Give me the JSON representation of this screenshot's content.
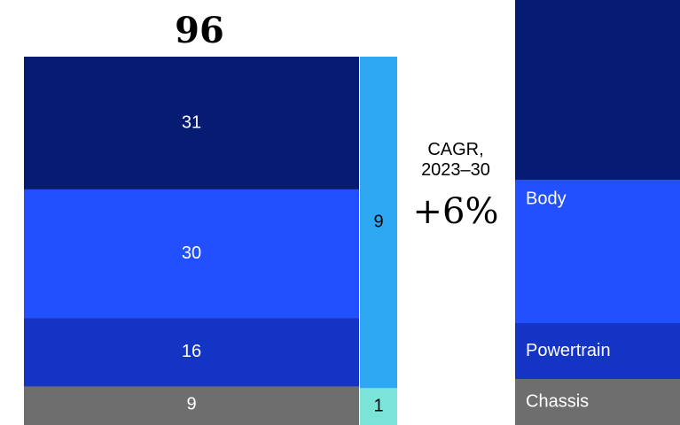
{
  "chart_data": {
    "type": "bar",
    "title": "",
    "total_2023": "96",
    "cagr_label_line1": "CAGR,",
    "cagr_label_line2": "2023–30",
    "cagr_value": "+6%",
    "main_stack": [
      {
        "segment": "top",
        "value": 31,
        "label": "31",
        "color": "#061C72"
      },
      {
        "segment": "body",
        "value": 30,
        "label": "30",
        "color": "#2250FF"
      },
      {
        "segment": "powertrain",
        "value": 16,
        "label": "16",
        "color": "#1434C4"
      },
      {
        "segment": "chassis",
        "value": 9,
        "label": "9",
        "color": "#6E6E6E"
      }
    ],
    "side_stack": [
      {
        "value": 9,
        "label": "9",
        "color": "#2FA8F2"
      },
      {
        "value": 1,
        "label": "1",
        "color": "#7CE3D8"
      }
    ],
    "right_stack_labels": [
      {
        "name": "",
        "color": "#061C72"
      },
      {
        "name": "Body",
        "color": "#2250FF"
      },
      {
        "name": "Powertrain",
        "color": "#1434C4"
      },
      {
        "name": "Chassis",
        "color": "#6E6E6E"
      }
    ]
  }
}
